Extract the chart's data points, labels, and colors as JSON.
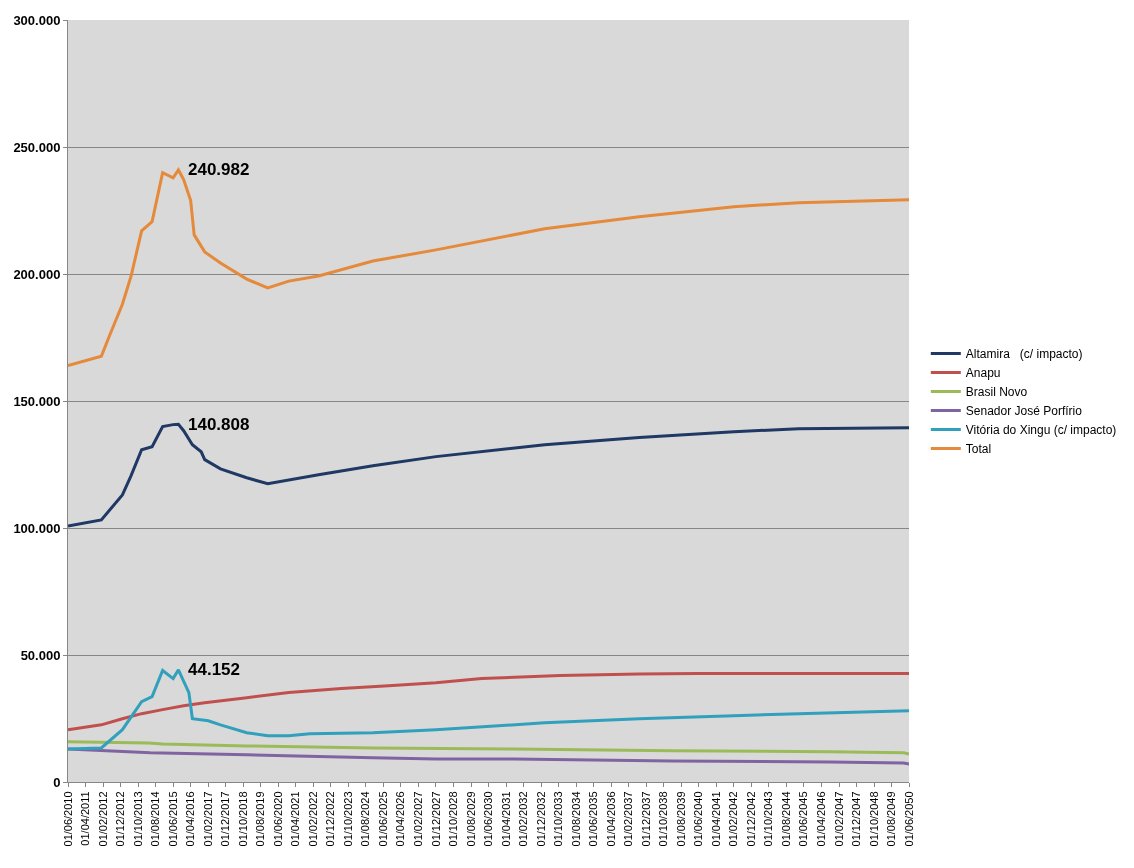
{
  "chart_data": {
    "type": "line",
    "legend": "right",
    "grid": "y",
    "line_style": "solid",
    "marker": "none",
    "ylim": [
      0,
      300000
    ],
    "yticks": [
      {
        "value": 0,
        "label": "0"
      },
      {
        "value": 50000,
        "label": "50.000"
      },
      {
        "value": 100000,
        "label": "100.000"
      },
      {
        "value": 150000,
        "label": "150.000"
      },
      {
        "value": 200000,
        "label": "200.000"
      },
      {
        "value": 250000,
        "label": "250.000"
      },
      {
        "value": 300000,
        "label": "300.000"
      }
    ],
    "xlim": [
      "2010-06-01",
      "2050-06-01"
    ],
    "xticks": [
      {
        "value": "2010-06-01",
        "label": "01/06/2010"
      },
      {
        "value": "2011-04-01",
        "label": "01/04/2011"
      },
      {
        "value": "2012-02-01",
        "label": "01/02/2012"
      },
      {
        "value": "2012-12-01",
        "label": "01/12/2012"
      },
      {
        "value": "2013-10-01",
        "label": "01/10/2013"
      },
      {
        "value": "2014-08-01",
        "label": "01/08/2014"
      },
      {
        "value": "2015-06-01",
        "label": "01/06/2015"
      },
      {
        "value": "2016-04-01",
        "label": "01/04/2016"
      },
      {
        "value": "2017-02-01",
        "label": "01/02/2017"
      },
      {
        "value": "2017-12-01",
        "label": "01/12/2017"
      },
      {
        "value": "2018-10-01",
        "label": "01/10/2018"
      },
      {
        "value": "2019-08-01",
        "label": "01/08/2019"
      },
      {
        "value": "2020-06-01",
        "label": "01/06/2020"
      },
      {
        "value": "2021-04-01",
        "label": "01/04/2021"
      },
      {
        "value": "2022-02-01",
        "label": "01/02/2022"
      },
      {
        "value": "2022-12-01",
        "label": "01/12/2022"
      },
      {
        "value": "2023-10-01",
        "label": "01/10/2023"
      },
      {
        "value": "2024-08-01",
        "label": "01/08/2024"
      },
      {
        "value": "2025-06-01",
        "label": "01/06/2025"
      },
      {
        "value": "2026-04-01",
        "label": "01/04/2026"
      },
      {
        "value": "2027-02-01",
        "label": "01/02/2027"
      },
      {
        "value": "2027-12-01",
        "label": "01/12/2027"
      },
      {
        "value": "2028-10-01",
        "label": "01/10/2028"
      },
      {
        "value": "2029-08-01",
        "label": "01/08/2029"
      },
      {
        "value": "2030-06-01",
        "label": "01/06/2030"
      },
      {
        "value": "2031-04-01",
        "label": "01/04/2031"
      },
      {
        "value": "2032-02-01",
        "label": "01/02/2032"
      },
      {
        "value": "2032-12-01",
        "label": "01/12/2032"
      },
      {
        "value": "2033-10-01",
        "label": "01/10/2033"
      },
      {
        "value": "2034-08-01",
        "label": "01/08/2034"
      },
      {
        "value": "2035-06-01",
        "label": "01/06/2035"
      },
      {
        "value": "2036-04-01",
        "label": "01/04/2036"
      },
      {
        "value": "2037-02-01",
        "label": "01/02/2037"
      },
      {
        "value": "2037-12-01",
        "label": "01/12/2037"
      },
      {
        "value": "2038-10-01",
        "label": "01/10/2038"
      },
      {
        "value": "2039-08-01",
        "label": "01/08/2039"
      },
      {
        "value": "2040-06-01",
        "label": "01/06/2040"
      },
      {
        "value": "2041-04-01",
        "label": "01/04/2041"
      },
      {
        "value": "2042-02-01",
        "label": "01/02/2042"
      },
      {
        "value": "2042-12-01",
        "label": "01/12/2042"
      },
      {
        "value": "2043-10-01",
        "label": "01/10/2043"
      },
      {
        "value": "2044-08-01",
        "label": "01/08/2044"
      },
      {
        "value": "2045-06-01",
        "label": "01/06/2045"
      },
      {
        "value": "2046-04-01",
        "label": "01/04/2046"
      },
      {
        "value": "2047-02-01",
        "label": "01/02/2047"
      },
      {
        "value": "2047-12-01",
        "label": "01/12/2047"
      },
      {
        "value": "2048-10-01",
        "label": "01/10/2048"
      },
      {
        "value": "2049-08-01",
        "label": "01/08/2049"
      },
      {
        "value": "2050-06-01",
        "label": "01/06/2050"
      }
    ],
    "series": [
      {
        "name": "Altamira   (c/ impacto)",
        "color": "#1f3864",
        "x": [
          "2010-06",
          "2012-01",
          "2013-01",
          "2013-06",
          "2013-12",
          "2014-06",
          "2014-12",
          "2015-06",
          "2015-09",
          "2015-12",
          "2016-05",
          "2016-10",
          "2016-12",
          "2017-09",
          "2018-12",
          "2019-12",
          "2022-05",
          "2024-12",
          "2027-12",
          "2033-02",
          "2037-08",
          "2042-02",
          "2045-03",
          "2050-06"
        ],
        "values": [
          100800,
          103200,
          113000,
          120600,
          130800,
          132000,
          139900,
          140700,
          140808,
          138300,
          132800,
          130000,
          126900,
          123300,
          119800,
          117400,
          121000,
          124500,
          128100,
          132800,
          135600,
          137900,
          139100,
          139500
        ]
      },
      {
        "name": "Anapu",
        "color": "#c0504d",
        "x": [
          "2010-06",
          "2012-01",
          "2013-01",
          "2013-12",
          "2014-12",
          "2015-12",
          "2016-12",
          "2018-12",
          "2020-12",
          "2023-06",
          "2025-09",
          "2027-12",
          "2030-02",
          "2033-11",
          "2037-08",
          "2040-05",
          "2050-06"
        ],
        "values": [
          20600,
          22500,
          24900,
          26900,
          28500,
          30000,
          31200,
          33200,
          35200,
          36800,
          37900,
          39100,
          40700,
          41900,
          42500,
          42700,
          42700
        ]
      },
      {
        "name": "Brasil Novo",
        "color": "#9bbb59",
        "x": [
          "2010-06",
          "2014-04",
          "2014-12",
          "2018-12",
          "2024-12",
          "2031-08",
          "2039-03",
          "2046-09",
          "2050-03",
          "2050-06"
        ],
        "values": [
          15800,
          15400,
          15000,
          14200,
          13400,
          13000,
          12300,
          11900,
          11500,
          11000
        ]
      },
      {
        "name": "Senador José Porfírio",
        "color": "#8064a2",
        "x": [
          "2010-06",
          "2014-05",
          "2018-12",
          "2024-12",
          "2027-12",
          "2031-08",
          "2039-03",
          "2046-09",
          "2050-03",
          "2050-06"
        ],
        "values": [
          13000,
          11500,
          10700,
          9500,
          9100,
          9100,
          8300,
          7900,
          7500,
          7100
        ]
      },
      {
        "name": "Vitória do Xingu (c/ impacto)",
        "color": "#31a0bd",
        "x": [
          "2010-06",
          "2012-01",
          "2013-01",
          "2013-12",
          "2014-06",
          "2014-12",
          "2015-06",
          "2015-09",
          "2016-03",
          "2016-05",
          "2017-02",
          "2017-09",
          "2018-12",
          "2019-12",
          "2020-12",
          "2021-12",
          "2024-12",
          "2027-12",
          "2033-02",
          "2037-08",
          "2042-02",
          "2045-03",
          "2050-06"
        ],
        "values": [
          13000,
          13400,
          20600,
          31600,
          33600,
          43900,
          40700,
          44152,
          35200,
          24900,
          24100,
          22500,
          19400,
          18200,
          18200,
          19000,
          19400,
          20600,
          23300,
          24900,
          26100,
          26900,
          28100
        ]
      },
      {
        "name": "Total",
        "color": "#e5893b",
        "x": [
          "2010-06",
          "2012-01",
          "2012-06",
          "2013-01",
          "2013-06",
          "2013-12",
          "2014-06",
          "2014-12",
          "2015-06",
          "2015-09",
          "2015-12",
          "2016-04",
          "2016-06",
          "2016-12",
          "2017-09",
          "2018-12",
          "2019-12",
          "2020-12",
          "2022-05",
          "2024-12",
          "2027-12",
          "2033-02",
          "2037-08",
          "2042-02",
          "2045-03",
          "2050-06"
        ],
        "values": [
          164000,
          167600,
          176300,
          188100,
          199200,
          217000,
          220600,
          239900,
          237900,
          240982,
          237200,
          228900,
          215400,
          208700,
          204300,
          198000,
          194500,
          197200,
          199200,
          205100,
          209500,
          217800,
          222500,
          226500,
          228100,
          229200
        ]
      }
    ],
    "annotations": [
      {
        "text": "240.982",
        "x": "2015-09",
        "y": 240982
      },
      {
        "text": "140.808",
        "x": "2015-09",
        "y": 140808
      },
      {
        "text": "44.152",
        "x": "2015-09",
        "y": 44152
      }
    ]
  }
}
